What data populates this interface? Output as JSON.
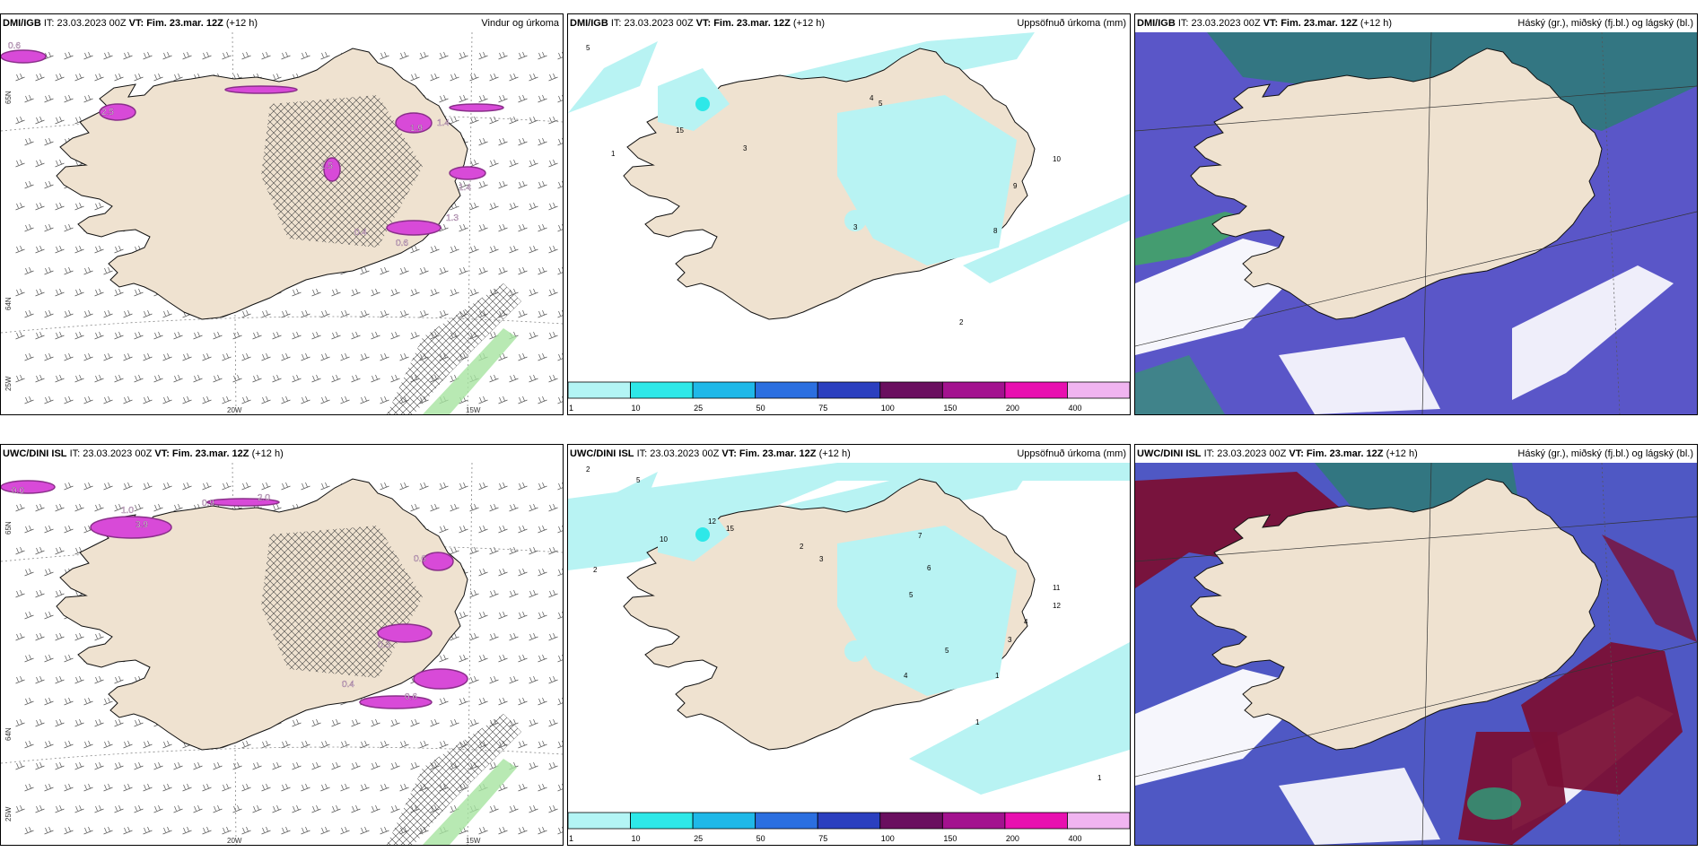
{
  "panels": [
    {
      "model": "DMI/IGB",
      "it": "IT: 23.03.2023 00Z",
      "vt": "VT: Fim. 23.mar. 12Z",
      "lead": "(+12 h)",
      "title": "Vindur og úrkoma",
      "type": "wind"
    },
    {
      "model": "DMI/IGB",
      "it": "IT: 23.03.2023 00Z",
      "vt": "VT: Fim. 23.mar. 12Z",
      "lead": "(+12 h)",
      "title": "Uppsöfnuð úrkoma (mm)",
      "type": "accum"
    },
    {
      "model": "DMI/IGB",
      "it": "IT: 23.03.2023 00Z",
      "vt": "VT: Fim. 23.mar. 12Z",
      "lead": "(+12 h)",
      "title": "Háský (gr.), miðský (fj.bl.) og lágský (bl.)",
      "type": "cloud"
    },
    {
      "model": "UWC/DINI ISL",
      "it": "IT: 23.03.2023 00Z",
      "vt": "VT: Fim. 23.mar. 12Z",
      "lead": "(+12 h)",
      "title": "",
      "type": "wind"
    },
    {
      "model": "UWC/DINI ISL",
      "it": "IT: 23.03.2023 00Z",
      "vt": "VT: Fim. 23.mar. 12Z",
      "lead": "(+12 h)",
      "title": "Uppsöfnuð úrkoma (mm)",
      "type": "accum"
    },
    {
      "model": "UWC/DINI ISL",
      "it": "IT: 23.03.2023 00Z",
      "vt": "VT: Fim. 23.mar. 12Z",
      "lead": "(+12 h)",
      "title": "Háský (gr.), miðský (fj.bl.) og lágský (bl.)",
      "type": "cloud"
    }
  ],
  "colorbar": {
    "labels": [
      "1",
      "10",
      "25",
      "50",
      "75",
      "100",
      "150",
      "200",
      "400"
    ],
    "colors": [
      "#b3f5f5",
      "#2ee8e8",
      "#1fb8e8",
      "#2b6fe0",
      "#2b3fbf",
      "#6a0f5f",
      "#a3128f",
      "#e810b0",
      "#f0b4f0"
    ]
  },
  "wind_ticks": {
    "lon_20w": "20W",
    "lon_15w": "15W",
    "lat_65n": "65N",
    "lat_64n": "64N",
    "lon_25w": "25W"
  },
  "colors": {
    "land": "#efe2d0",
    "coast": "#111111",
    "precip": "#d84ad8",
    "precip_dark": "#8a2f8a",
    "accum_light": "#b8f3f3",
    "cloud_high": "#7a1036",
    "cloud_mid": "#5a56c8",
    "cloud_low": "#2f7a7a"
  },
  "labels": {
    "wind_top": [
      "0.6",
      "2.5",
      "1.9",
      "1.4",
      "1.5",
      "1.4",
      "0.4",
      "0.6",
      "1.3"
    ],
    "wind_bot": [
      "0.0",
      "1.0",
      "3.9",
      "0.9",
      "2.0",
      "0.6",
      "0.3",
      "0.4",
      "0.6"
    ],
    "accum_top": [
      "5",
      "1",
      "15",
      "3",
      "4",
      "10",
      "9",
      "8",
      "3",
      "5",
      "2"
    ],
    "accum_bot": [
      "2",
      "5",
      "2",
      "10",
      "12",
      "15",
      "2",
      "3",
      "7",
      "6",
      "5",
      "11",
      "12",
      "4",
      "3",
      "5",
      "1",
      "4",
      "1",
      "1"
    ]
  }
}
